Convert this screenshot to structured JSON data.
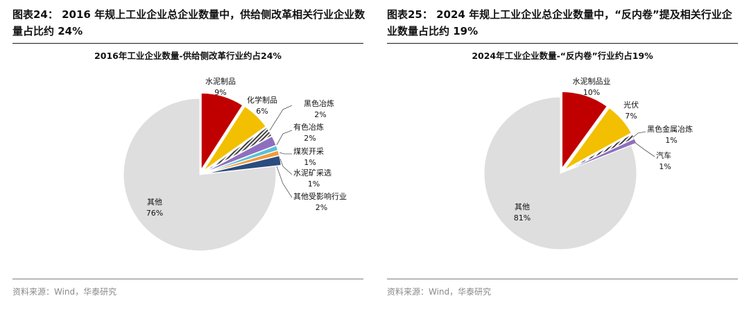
{
  "figures": [
    {
      "fig_title": "图表24： 2016 年规上工业企业总企业数量中，供给侧改革相关行业企业数量占比约 24%",
      "source": "资料来源：Wind，华泰研究"
    },
    {
      "fig_title": "图表25： 2024 年规上工业企业总企业数量中，“反内卷”提及相关行业企业数量占比约 19%",
      "source": "资料来源：Wind，华泰研究"
    }
  ],
  "chart_data": [
    {
      "type": "pie",
      "title": "2016年工业企业数量-供给侧改革行业约占24%",
      "slices": [
        {
          "label": "水泥制品",
          "value": 9,
          "value_label": "9%",
          "color": "#c00000"
        },
        {
          "label": "化学制品",
          "value": 6,
          "value_label": "6%",
          "color": "#f2c000"
        },
        {
          "label": "黑色冶炼",
          "value": 2,
          "value_label": "2%",
          "color": "#404040",
          "pattern": "hatch"
        },
        {
          "label": "有色冶炼",
          "value": 2,
          "value_label": "2%",
          "color": "#8e6fbf"
        },
        {
          "label": "煤炭开采",
          "value": 1,
          "value_label": "1%",
          "color": "#5bc0d8"
        },
        {
          "label": "水泥矿采选",
          "value": 1,
          "value_label": "1%",
          "color": "#f39a3a"
        },
        {
          "label": "其他受影响行业",
          "value": 2,
          "value_label": "2%",
          "color": "#2b4c7e"
        },
        {
          "label": "其他",
          "value": 76,
          "value_label": "76%",
          "color": "#dedede"
        }
      ],
      "legend": "none",
      "labels": "outside with leader lines"
    },
    {
      "type": "pie",
      "title": "2024年工业企业数量-“反内卷”行业约占19%",
      "slices": [
        {
          "label": "水泥制品业",
          "value": 10,
          "value_label": "10%",
          "color": "#c00000"
        },
        {
          "label": "光伏",
          "value": 7,
          "value_label": "7%",
          "color": "#f2c000"
        },
        {
          "label": "黑色金属冶炼",
          "value": 1,
          "value_label": "1%",
          "color": "#404040",
          "pattern": "hatch"
        },
        {
          "label": "汽车",
          "value": 1,
          "value_label": "1%",
          "color": "#8e6fbf"
        },
        {
          "label": "其他",
          "value": 81,
          "value_label": "81%",
          "color": "#dedede"
        }
      ],
      "legend": "none",
      "labels": "outside with leader lines"
    }
  ]
}
